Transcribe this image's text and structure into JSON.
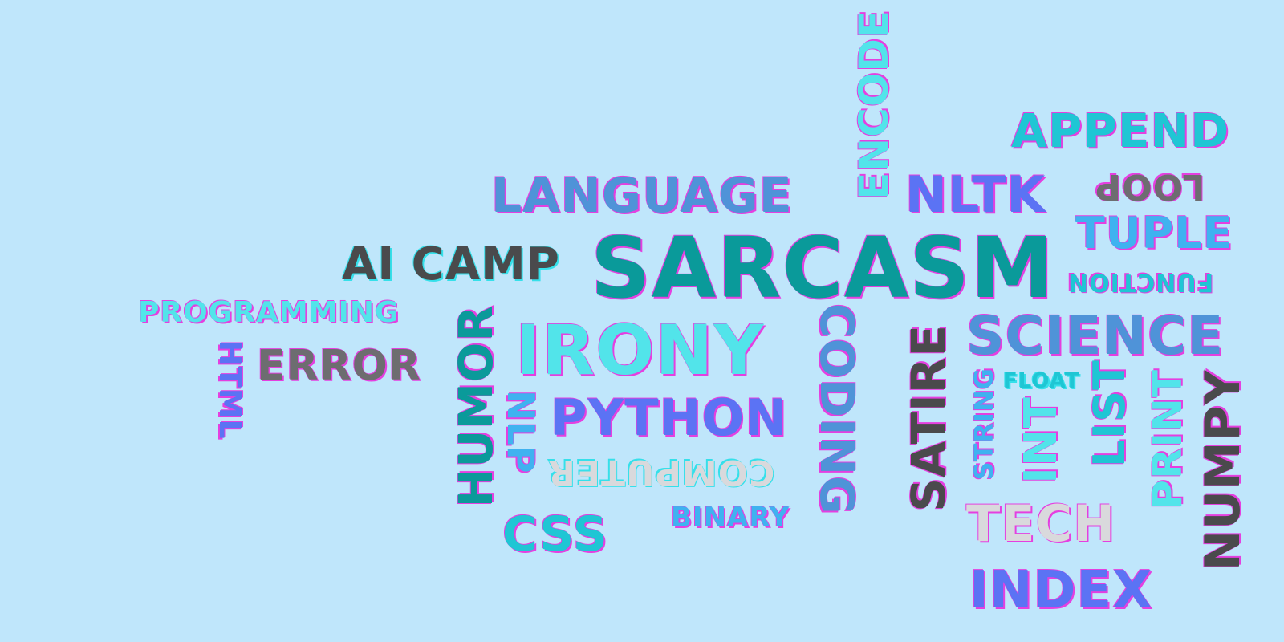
{
  "words": {
    "sarcasm": "SARCASM",
    "language": "LANGUAGE",
    "encode": "ENCODE",
    "nltk": "NLTK",
    "append": "APPEND",
    "loop": "LOOP",
    "tuple": "TUPLE",
    "ai_camp": "AI CAMP",
    "function": "FUNCTION",
    "programming": "PROGRAMMING",
    "html": "HTML",
    "error": "ERROR",
    "humor": "HUMOR",
    "irony": "IRONY",
    "coding": "CODING",
    "satire": "SATIRE",
    "science": "SCIENCE",
    "string": "STRING",
    "float": "FLOAT",
    "int": "INT",
    "list": "LIST",
    "print": "PRINT",
    "numpy": "NUMPY",
    "nlp": "NLP",
    "python": "PYTHON",
    "computer": "COMPUTER",
    "css": "CSS",
    "binary": "BINARY",
    "tech": "TECH",
    "index": "INDEX"
  },
  "colors": {
    "background": "#bfe6fb",
    "teal": "#0a9a9a",
    "cyan": "#52e4ea",
    "blue": "#5b73f4",
    "steel": "#4f93d8",
    "dark": "#4a4a4c",
    "gray": "#6d6d70",
    "light": "#d9d9dc"
  }
}
